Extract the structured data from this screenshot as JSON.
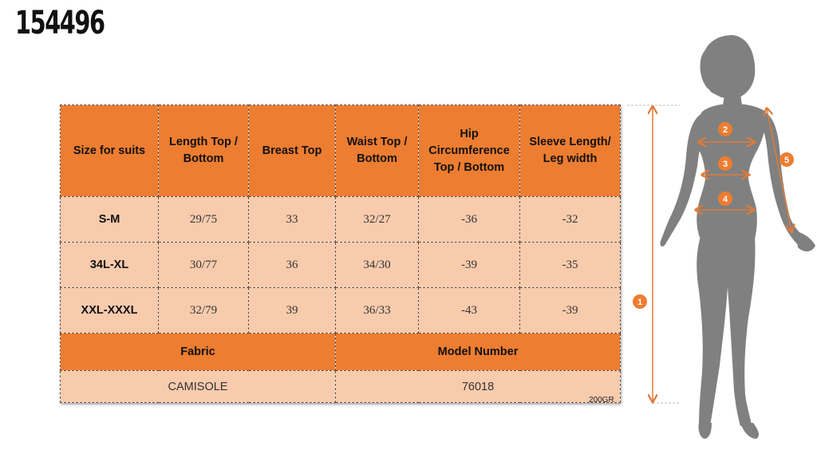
{
  "product_code": "154496",
  "table": {
    "headers": [
      "Size for suits",
      "Length Top / Bottom",
      "Breast Top",
      "Waist Top / Bottom",
      "Hip Circumference Top / Bottom",
      "Sleeve Length/ Leg width"
    ],
    "rows": [
      [
        "S-M",
        "29/75",
        "33",
        "32/27",
        "-36",
        "-32"
      ],
      [
        "34L-XL",
        "30/77",
        "36",
        "34/30",
        "-39",
        "-35"
      ],
      [
        "XXL-XXXL",
        "32/79",
        "39",
        "36/33",
        "-43",
        "-39"
      ]
    ],
    "fabric_label": "Fabric",
    "model_label": "Model Number",
    "fabric_value": "CAMISOLE",
    "model_value": "76018"
  },
  "footnote": "200GR",
  "markers": {
    "m1": "1",
    "m2": "2",
    "m3": "3",
    "m4": "4",
    "m5": "5"
  },
  "colors": {
    "header_orange": "#ed7d31",
    "cell_peach": "#f8cbad",
    "marker_orange": "#ed7d31",
    "figure_gray": "#808080"
  }
}
